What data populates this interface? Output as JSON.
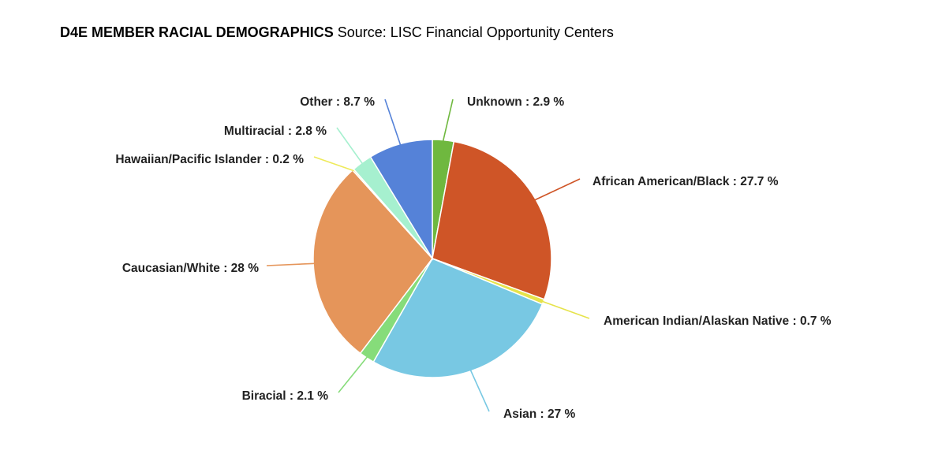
{
  "header": {
    "title_bold": "D4E MEMBER RACIAL DEMOGRAPHICS",
    "title_rest": " Source: LISC Financial Opportunity Centers"
  },
  "chart_data": {
    "type": "pie",
    "title": "D4E MEMBER RACIAL DEMOGRAPHICS",
    "subtitle": "Source: LISC Financial Opportunity Centers",
    "slices": [
      {
        "label": "Unknown",
        "value": 2.9,
        "text": "Unknown : 2.9 %",
        "color": "#6fb83f"
      },
      {
        "label": "African American/Black",
        "value": 27.7,
        "text": "African American/Black : 27.7 %",
        "color": "#cf5527"
      },
      {
        "label": "American Indian/Alaskan Native",
        "value": 0.7,
        "text": "American Indian/Alaskan Native : 0.7 %",
        "color": "#e6e34a"
      },
      {
        "label": "Asian",
        "value": 27,
        "text": "Asian : 27 %",
        "color": "#78c8e3"
      },
      {
        "label": "Biracial",
        "value": 2.1,
        "text": "Biracial : 2.1 %",
        "color": "#86dc7a"
      },
      {
        "label": "Caucasian/White",
        "value": 28,
        "text": "Caucasian/White : 28 %",
        "color": "#e5955a"
      },
      {
        "label": "Hawaiian/Pacific Islander",
        "value": 0.2,
        "text": "Hawaiian/Pacific Islander : 0.2 %",
        "color": "#eeea5a"
      },
      {
        "label": "Multiracial",
        "value": 2.8,
        "text": "Multiracial : 2.8 %",
        "color": "#a6f0cf"
      },
      {
        "label": "Other",
        "value": 8.7,
        "text": "Other : 8.7 %",
        "color": "#5582d8"
      }
    ]
  }
}
